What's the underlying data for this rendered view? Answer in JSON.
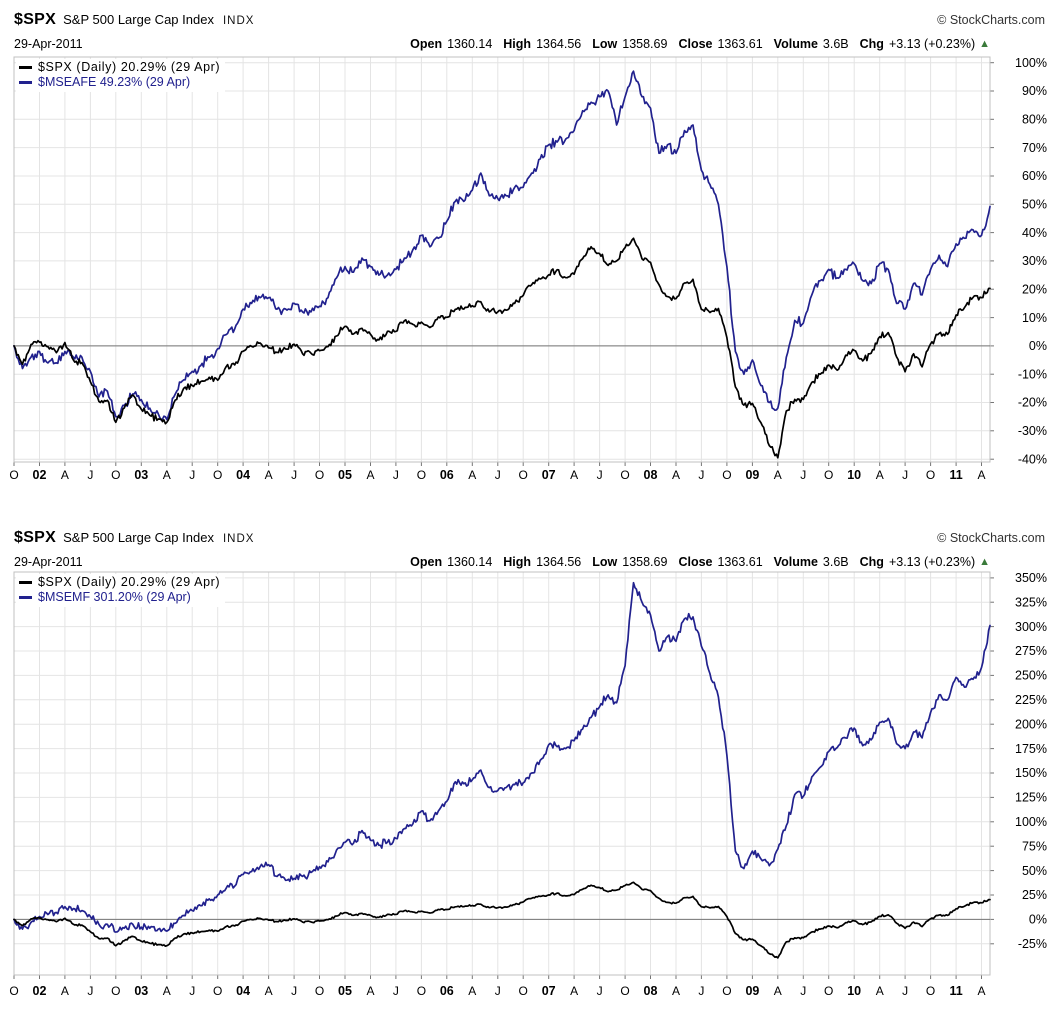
{
  "credit": "© StockCharts.com",
  "icons": {
    "up_arrow": "▲"
  },
  "colors": {
    "series_black": "#000000",
    "series_blue": "#21218e",
    "arrow_up": "#3a7a3a",
    "grid": "#e4e4e4",
    "zero_line": "#757575",
    "border": "#c0c0c0"
  },
  "charts": [
    {
      "symbol": "$SPX",
      "name": "S&P 500 Large Cap Index",
      "exchange": "INDX",
      "date": "29-Apr-2011",
      "quote": {
        "open_label": "Open",
        "open": "1360.14",
        "high_label": "High",
        "high": "1364.56",
        "low_label": "Low",
        "low": "1358.69",
        "close_label": "Close",
        "close": "1363.61",
        "volume_label": "Volume",
        "volume": "3.6B",
        "chg_label": "Chg",
        "chg": "+3.13 (+0.23%)"
      }
    },
    {
      "symbol": "$SPX",
      "name": "S&P 500 Large Cap Index",
      "exchange": "INDX",
      "date": "29-Apr-2011",
      "quote": {
        "open_label": "Open",
        "open": "1360.14",
        "high_label": "High",
        "high": "1364.56",
        "low_label": "Low",
        "low": "1358.69",
        "close_label": "Close",
        "close": "1363.61",
        "volume_label": "Volume",
        "volume": "3.6B",
        "chg_label": "Chg",
        "chg": "+3.13 (+0.23%)"
      }
    }
  ],
  "chart_data": [
    {
      "type": "line",
      "x_tick_labels": [
        "O",
        "02",
        "A",
        "J",
        "O",
        "03",
        "A",
        "J",
        "O",
        "04",
        "A",
        "J",
        "O",
        "05",
        "A",
        "J",
        "O",
        "06",
        "A",
        "J",
        "O",
        "07",
        "A",
        "J",
        "O",
        "08",
        "A",
        "J",
        "O",
        "09",
        "A",
        "J",
        "O",
        "10",
        "A",
        "J",
        "O",
        "11",
        "A"
      ],
      "x_range_note": "monthly points, Oct-2001 start to 29-Apr-2011",
      "ylim": [
        -41,
        102
      ],
      "y_ticks": [
        100,
        90,
        80,
        70,
        60,
        50,
        40,
        30,
        20,
        10,
        0,
        -10,
        -20,
        -30,
        -40
      ],
      "ylabel_suffix": "%",
      "grid": true,
      "legend_position": "top-left",
      "series": [
        {
          "name": "$SPX (Daily)",
          "legend": "$SPX (Daily) 20.29% (29 Apr)",
          "final_pct": 20.29,
          "color": "#000000",
          "values": [
            0,
            -6.5,
            0.5,
            1.3,
            -0.3,
            -2.4,
            1.2,
            -5,
            -5.9,
            -12.7,
            -19.6,
            -19.2,
            -27,
            -21.9,
            -17.4,
            -22.4,
            -24.5,
            -25.8,
            -27,
            -19.1,
            -15,
            -14,
            -12.6,
            -11.1,
            -12.1,
            -7.3,
            -6.7,
            -1.9,
            -0.2,
            1,
            -0.7,
            -2.3,
            -1.1,
            0.6,
            -2.8,
            -2.6,
            -1.7,
            -0.3,
            3.5,
            6.9,
            4.2,
            6.2,
            4.1,
            2.1,
            5.1,
            5.1,
            8.9,
            7.6,
            8.4,
            6.5,
            10.2,
            10.1,
            12.9,
            13,
            14.2,
            15.6,
            12,
            12,
            12.6,
            15,
            17.8,
            21.6,
            23.6,
            25.1,
            26.9,
            24.1,
            25.3,
            30.8,
            35,
            32.6,
            28.4,
            30,
            34.7,
            38,
            30.7,
            29.5,
            21.6,
            17.4,
            16.7,
            22.2,
            23.5,
            12.9,
            11.8,
            13.2,
            2.9,
            -14.5,
            -20.9,
            -20.3,
            -27.1,
            -35.2,
            -39.5,
            -23,
            -18.9,
            -18.9,
            -12.9,
            -10,
            -6.8,
            -8.6,
            -3.3,
            -1.6,
            -5.3,
            -2.6,
            3.2,
            4.7,
            -3.9,
            -9.1,
            -2.8,
            -7.4,
            0.7,
            4.4,
            4.1,
            10.9,
            13.5,
            17.1,
            17,
            20.29
          ]
        },
        {
          "name": "$MSEAFE",
          "legend": "$MSEAFE 49.23% (29 Apr)",
          "final_pct": 49.23,
          "color": "#21218e",
          "values": [
            0,
            -8,
            -4,
            -2,
            -6,
            -6,
            -2,
            -4,
            -4,
            -9,
            -18,
            -16,
            -25,
            -21,
            -17,
            -19,
            -22,
            -24,
            -26,
            -17,
            -12,
            -9,
            -7,
            -4,
            -1,
            4,
            6,
            13,
            15,
            17,
            17,
            13,
            13,
            15,
            12,
            12,
            14,
            17,
            24,
            28,
            26,
            31,
            28,
            25,
            25,
            27,
            31,
            34,
            39,
            35,
            38,
            44,
            51,
            51,
            55,
            61,
            53,
            52,
            53,
            56,
            56,
            61,
            66,
            71,
            72,
            73,
            76,
            83,
            86,
            88,
            90,
            78,
            88,
            97,
            88,
            84,
            68,
            71,
            68,
            76,
            78,
            62,
            57,
            50,
            28,
            -2,
            -10,
            -5,
            -14,
            -20,
            -22,
            -4,
            9,
            8,
            18,
            23,
            27,
            24,
            27,
            29,
            23,
            22,
            29,
            27,
            15,
            13,
            22,
            18,
            27,
            32,
            28,
            36,
            38,
            41,
            39,
            49.23
          ]
        }
      ]
    },
    {
      "type": "line",
      "x_tick_labels": [
        "O",
        "02",
        "A",
        "J",
        "O",
        "03",
        "A",
        "J",
        "O",
        "04",
        "A",
        "J",
        "O",
        "05",
        "A",
        "J",
        "O",
        "06",
        "A",
        "J",
        "O",
        "07",
        "A",
        "J",
        "O",
        "08",
        "A",
        "J",
        "O",
        "09",
        "A",
        "J",
        "O",
        "10",
        "A",
        "J",
        "O",
        "11",
        "A"
      ],
      "x_range_note": "monthly points, Oct-2001 start to 29-Apr-2011",
      "ylim": [
        -57,
        356
      ],
      "y_ticks": [
        350,
        325,
        300,
        275,
        250,
        225,
        200,
        175,
        150,
        125,
        100,
        75,
        50,
        25,
        0,
        -25
      ],
      "ylabel_suffix": "%",
      "grid": true,
      "legend_position": "top-left",
      "series": [
        {
          "name": "$SPX (Daily)",
          "legend": "$SPX (Daily) 20.29% (29 Apr)",
          "final_pct": 20.29,
          "color": "#000000",
          "values": [
            0,
            -6.5,
            0.5,
            1.3,
            -0.3,
            -2.4,
            1.2,
            -5,
            -5.9,
            -12.7,
            -19.6,
            -19.2,
            -27,
            -21.9,
            -17.4,
            -22.4,
            -24.5,
            -25.8,
            -27,
            -19.1,
            -15,
            -14,
            -12.6,
            -11.1,
            -12.1,
            -7.3,
            -6.7,
            -1.9,
            -0.2,
            1,
            -0.7,
            -2.3,
            -1.1,
            0.6,
            -2.8,
            -2.6,
            -1.7,
            -0.3,
            3.5,
            6.9,
            4.2,
            6.2,
            4.1,
            2.1,
            5.1,
            5.1,
            8.9,
            7.6,
            8.4,
            6.5,
            10.2,
            10.1,
            12.9,
            13,
            14.2,
            15.6,
            12,
            12,
            12.6,
            15,
            17.8,
            21.6,
            23.6,
            25.1,
            26.9,
            24.1,
            25.3,
            30.8,
            35,
            32.6,
            28.4,
            30,
            34.7,
            38,
            30.7,
            29.5,
            21.6,
            17.4,
            16.7,
            22.2,
            23.5,
            12.9,
            11.8,
            13.2,
            2.9,
            -14.5,
            -20.9,
            -20.3,
            -27.1,
            -35.2,
            -39.5,
            -23,
            -18.9,
            -18.9,
            -12.9,
            -10,
            -6.8,
            -8.6,
            -3.3,
            -1.6,
            -5.3,
            -2.6,
            3.2,
            4.7,
            -3.9,
            -9.1,
            -2.8,
            -7.4,
            0.7,
            4.4,
            4.1,
            10.9,
            13.5,
            17.1,
            17,
            20.29
          ]
        },
        {
          "name": "$MSEMF",
          "legend": "$MSEMF 301.20% (29 Apr)",
          "final_pct": 301.2,
          "color": "#21218e",
          "values": [
            0,
            -10,
            -3,
            3,
            5,
            7,
            13,
            11,
            9,
            3,
            -5,
            -5,
            -13,
            -9,
            -5,
            -8,
            -9,
            -10,
            -12,
            -4,
            4,
            9,
            14,
            21,
            25,
            32,
            34,
            46,
            49,
            54,
            56,
            44,
            40,
            42,
            44,
            48,
            54,
            59,
            71,
            79,
            78,
            91,
            81,
            76,
            79,
            83,
            93,
            98,
            111,
            101,
            111,
            121,
            141,
            139,
            143,
            153,
            135,
            132,
            135,
            138,
            140,
            150,
            163,
            179,
            177,
            175,
            183,
            195,
            207,
            218,
            230,
            222,
            260,
            345,
            325,
            312,
            275,
            290,
            285,
            308,
            310,
            280,
            252,
            228,
            168,
            70,
            52,
            70,
            62,
            55,
            72,
            96,
            128,
            126,
            146,
            156,
            172,
            176,
            186,
            196,
            178,
            184,
            202,
            206,
            180,
            175,
            192,
            186,
            212,
            230,
            225,
            248,
            238,
            246,
            258,
            301.2
          ]
        }
      ]
    }
  ]
}
